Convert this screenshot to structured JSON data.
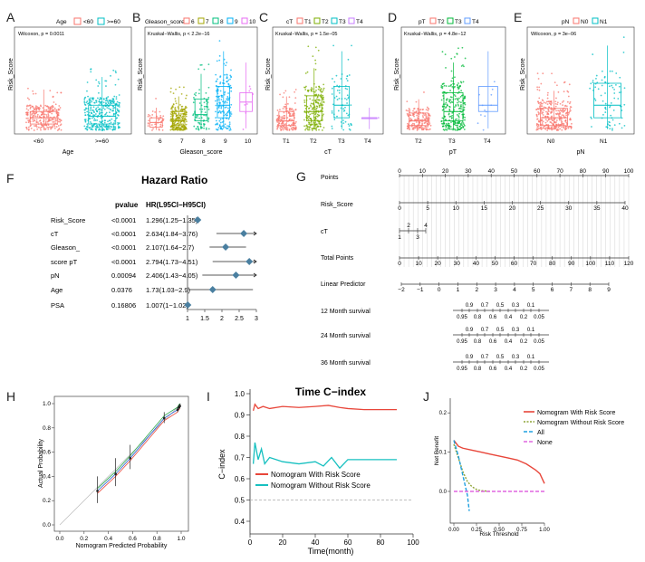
{
  "colors": {
    "red": "#F8766D",
    "green": "#7CAE00",
    "teal": "#00BFC4",
    "purple": "#C77CFF",
    "navy": "#2E5A78",
    "diamond": "#4A7FA0",
    "dkred": "#E8463A",
    "dkteal": "#17C0C0",
    "olive": "#8EA437",
    "allblue": "#1FA0E0",
    "nonepink": "#E066E0"
  },
  "panels": {
    "A": {
      "letter": "A",
      "legend_title": "Age",
      "legend": [
        "<60",
        ">=60"
      ],
      "test": "Wilcoxon, p = 0.0011",
      "ylabel": "Risk_Score",
      "xlabel": "Age",
      "categories": [
        "<60",
        ">=60"
      ]
    },
    "B": {
      "letter": "B",
      "legend_title": "Gleason_score",
      "legend": [
        "6",
        "7",
        "8",
        "9",
        "10"
      ],
      "test": "Kruskal−Wallis, p < 2.2e−16",
      "ylabel": "Risk_Score",
      "xlabel": "Gleason_score",
      "categories": [
        "6",
        "7",
        "8",
        "9",
        "10"
      ]
    },
    "C": {
      "letter": "C",
      "legend_title": "cT",
      "legend": [
        "T1",
        "T2",
        "T3",
        "T4"
      ],
      "test": "Kruskal−Wallis, p = 1.5e−05",
      "ylabel": "Risk_Score",
      "xlabel": "cT",
      "categories": [
        "T1",
        "T2",
        "T3",
        "T4"
      ]
    },
    "D": {
      "letter": "D",
      "legend_title": "pT",
      "legend": [
        "T2",
        "T3",
        "T4"
      ],
      "test": "Kruskal−Wallis, p = 4.8e−12",
      "ylabel": "Risk_Score",
      "xlabel": "pT",
      "categories": [
        "T2",
        "T3",
        "T4"
      ]
    },
    "E": {
      "letter": "E",
      "legend_title": "pN",
      "legend": [
        "N0",
        "N1"
      ],
      "test": "Wilcoxon, p = 3e−06",
      "ylabel": "Risk_Score",
      "xlabel": "pN",
      "categories": [
        "N0",
        "N1"
      ]
    },
    "F": {
      "letter": "F",
      "title": "Hazard Ratio",
      "col_pvalue": "pvalue",
      "col_hr": "HR(L95CI−H95CI)",
      "rows": [
        {
          "name": "Risk_Score",
          "p": "<0.0001",
          "hr_text": "1.296(1.25−1.35)"
        },
        {
          "name": "cT",
          "p": "<0.0001",
          "hr_text": "2.634(1.84−3.76)"
        },
        {
          "name": "Gleason_",
          "p": "<0.0001",
          "hr_text": "2.107(1.64−2.7)"
        },
        {
          "name": "score pT",
          "p": "<0.0001",
          "hr_text": "2.794(1.73−4.51)"
        },
        {
          "name": "pN",
          "p": "0.00094",
          "hr_text": "2.406(1.43−4.05)"
        },
        {
          "name": "Age",
          "p": "0.0376",
          "hr_text": "1.73(1.03−2.9)"
        },
        {
          "name": "PSA",
          "p": "0.16806",
          "hr_text": "1.007(1−1.02)"
        }
      ],
      "axis_ticks": [
        "1",
        "1.5",
        "2",
        "2.5",
        "3"
      ]
    },
    "G": {
      "letter": "G",
      "rows": {
        "points": "Points",
        "risk": "Risk_Score",
        "ct": "cT",
        "total": "Total Points",
        "lp": "Linear Predictor",
        "m12": "12 Month survival",
        "m24": "24 Month survival",
        "m36": "36 Month survival"
      },
      "points_ticks": [
        "0",
        "10",
        "20",
        "30",
        "40",
        "50",
        "60",
        "70",
        "80",
        "90",
        "100"
      ],
      "risk_ticks": [
        "0",
        "5",
        "10",
        "15",
        "20",
        "25",
        "30",
        "35",
        "40"
      ],
      "ct_ticks": [
        "2",
        "4",
        "1",
        "3"
      ],
      "total_ticks": [
        "0",
        "10",
        "20",
        "30",
        "40",
        "50",
        "60",
        "70",
        "80",
        "90",
        "100",
        "110",
        "120"
      ],
      "lp_ticks": [
        "−2",
        "−1",
        "0",
        "1",
        "2",
        "3",
        "4",
        "5",
        "6",
        "7",
        "8",
        "9"
      ],
      "surv_top": [
        "0.9",
        "0.7",
        "0.5",
        "0.3",
        "0.1"
      ],
      "surv_bot": [
        "0.95",
        "0.8",
        "0.6",
        "0.4",
        "0.2",
        "0.05"
      ]
    },
    "H": {
      "letter": "H",
      "xlabel": "Nomogram Predicted Probability",
      "ylabel": "Actual Probability",
      "ticks": [
        "0.0",
        "0.2",
        "0.4",
        "0.6",
        "0.8",
        "1.0"
      ]
    },
    "I": {
      "letter": "I",
      "title": "Time C−index",
      "xlabel": "Time(month)",
      "ylabel": "C−index",
      "xticks": [
        "0",
        "20",
        "40",
        "60",
        "80",
        "100"
      ],
      "yticks": [
        "0.4",
        "0.5",
        "0.6",
        "0.7",
        "0.8",
        "0.9",
        "1.0"
      ],
      "legend": [
        "Nomogram With Risk Score",
        "Nomogram Without Risk Score"
      ]
    },
    "J": {
      "letter": "J",
      "xlabel": "Risk Threshold",
      "ylabel": "Net Benefit",
      "xticks": [
        "0.00",
        "0.25",
        "0.50",
        "0.75",
        "1.00"
      ],
      "yticks": [
        "0.0",
        "0.1",
        "0.2"
      ],
      "legend": [
        "Nomogram With Risk Score",
        "Nomogram Without Risk Score",
        "All",
        "None"
      ]
    }
  },
  "chart_data": [
    {
      "panel": "A",
      "type": "box",
      "categories": [
        "<60",
        ">=60"
      ],
      "ylabel": "Risk_Score",
      "box_stats": [
        {
          "q1": 2,
          "median": 4,
          "q3": 6,
          "whisker_low": 0,
          "whisker_high": 13
        },
        {
          "q1": 2,
          "median": 4.5,
          "q3": 8,
          "whisker_low": 0,
          "whisker_high": 17
        }
      ]
    },
    {
      "panel": "B",
      "type": "box",
      "categories": [
        "6",
        "7",
        "8",
        "9",
        "10"
      ],
      "box_stats": [
        {
          "q1": 1,
          "median": 2.5,
          "q3": 4
        },
        {
          "q1": 1.5,
          "median": 3,
          "q3": 6
        },
        {
          "q1": 3,
          "median": 5,
          "q3": 10
        },
        {
          "q1": 4,
          "median": 8,
          "q3": 14
        },
        {
          "q1": 6,
          "median": 9,
          "q3": 12
        }
      ]
    },
    {
      "panel": "C",
      "type": "box",
      "categories": [
        "T1",
        "T2",
        "T3",
        "T4"
      ],
      "box_stats": [
        {
          "q1": 1.5,
          "median": 3,
          "q3": 6
        },
        {
          "q1": 3,
          "median": 6,
          "q3": 11
        },
        {
          "q1": 4,
          "median": 8,
          "q3": 14
        },
        {
          "q1": 4,
          "median": 4,
          "q3": 4
        }
      ]
    },
    {
      "panel": "D",
      "type": "box",
      "categories": [
        "T2",
        "T3",
        "T4"
      ],
      "box_stats": [
        {
          "q1": 1.5,
          "median": 3,
          "q3": 5.5
        },
        {
          "q1": 3,
          "median": 6,
          "q3": 12
        },
        {
          "q1": 6,
          "median": 8,
          "q3": 14
        }
      ]
    },
    {
      "panel": "E",
      "type": "box",
      "categories": [
        "N0",
        "N1"
      ],
      "box_stats": [
        {
          "q1": 1.5,
          "median": 4,
          "q3": 7
        },
        {
          "q1": 4,
          "median": 8,
          "q3": 15
        }
      ]
    },
    {
      "panel": "F",
      "type": "forest",
      "xlim": [
        1,
        3
      ],
      "hr": [
        1.296,
        2.634,
        2.107,
        2.794,
        2.406,
        1.73,
        1.007
      ],
      "lo": [
        1.25,
        1.84,
        1.64,
        1.73,
        1.43,
        1.03,
        1.0
      ],
      "hi": [
        1.35,
        3.76,
        2.7,
        4.51,
        4.05,
        2.9,
        1.02
      ]
    },
    {
      "panel": "H",
      "type": "line",
      "xlim": [
        0,
        1
      ],
      "ylim": [
        0,
        1
      ],
      "x": [
        0.31,
        0.46,
        0.58,
        0.86,
        0.97,
        0.98,
        0.99
      ],
      "y": [
        0.28,
        0.42,
        0.55,
        0.88,
        0.95,
        0.97,
        0.98
      ],
      "ylow": [
        0.18,
        0.32,
        0.46,
        0.84,
        0.93,
        0.95,
        0.96
      ],
      "yhigh": [
        0.4,
        0.55,
        0.66,
        0.93,
        0.97,
        0.99,
        1.0
      ]
    },
    {
      "panel": "I",
      "type": "line",
      "xlim": [
        0,
        100
      ],
      "ylim": [
        0.4,
        1.0
      ],
      "series": [
        {
          "name": "Nomogram With Risk Score",
          "x": [
            2,
            3,
            5,
            8,
            12,
            20,
            30,
            40,
            48,
            55,
            60,
            70,
            90
          ],
          "y": [
            0.92,
            0.95,
            0.93,
            0.94,
            0.93,
            0.94,
            0.935,
            0.94,
            0.945,
            0.935,
            0.93,
            0.925,
            0.925
          ]
        },
        {
          "name": "Nomogram Without Risk Score",
          "x": [
            2,
            3,
            5,
            7,
            9,
            12,
            20,
            30,
            40,
            45,
            50,
            55,
            60,
            70,
            90
          ],
          "y": [
            0.67,
            0.77,
            0.69,
            0.74,
            0.67,
            0.7,
            0.68,
            0.67,
            0.68,
            0.66,
            0.7,
            0.65,
            0.69,
            0.69,
            0.69
          ]
        }
      ],
      "reference": 0.5
    },
    {
      "panel": "J",
      "type": "line",
      "xlim": [
        0,
        1
      ],
      "ylim": [
        -0.05,
        0.22
      ],
      "series": [
        {
          "name": "Nomogram With Risk Score",
          "x": [
            0.0,
            0.05,
            0.1,
            0.2,
            0.3,
            0.4,
            0.5,
            0.6,
            0.7,
            0.8,
            0.9,
            0.95,
            1.0
          ],
          "y": [
            0.13,
            0.115,
            0.11,
            0.105,
            0.1,
            0.095,
            0.09,
            0.085,
            0.08,
            0.07,
            0.055,
            0.045,
            0.02
          ]
        },
        {
          "name": "Nomogram Without Risk Score",
          "x": [
            0.0,
            0.05,
            0.1,
            0.15,
            0.2,
            0.25,
            0.3,
            0.4
          ],
          "y": [
            0.12,
            0.085,
            0.05,
            0.025,
            0.012,
            0.005,
            0.002,
            0.0
          ]
        },
        {
          "name": "All",
          "x": [
            0.0,
            0.05,
            0.1,
            0.15,
            0.17
          ],
          "y": [
            0.13,
            0.09,
            0.04,
            -0.01,
            -0.05
          ]
        },
        {
          "name": "None",
          "x": [
            0.0,
            1.0
          ],
          "y": [
            0.0,
            0.0
          ]
        }
      ]
    }
  ]
}
